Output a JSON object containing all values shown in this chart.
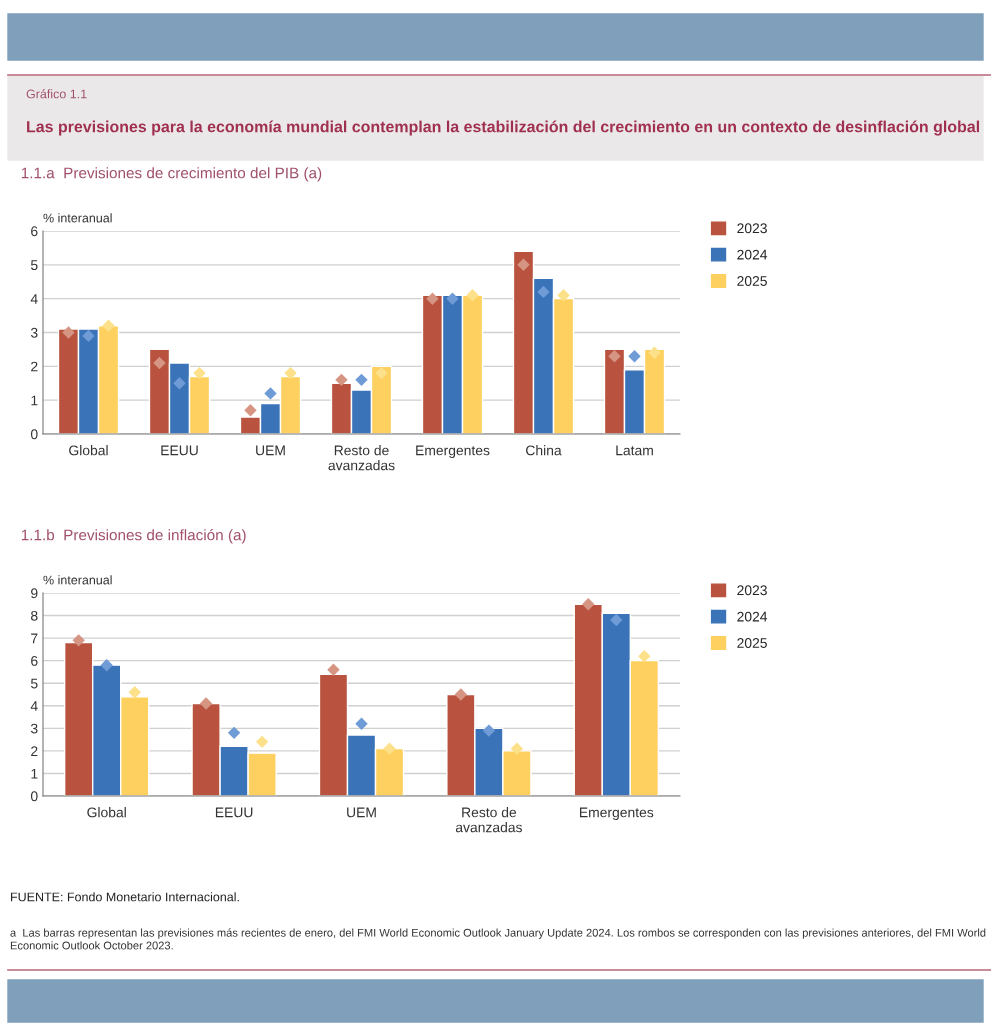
{
  "chart_data": [
    {
      "type": "bar",
      "title": "1.1.a  Previsiones de crecimiento del PIB (a)",
      "ylabel": "% interanual",
      "annotations": [
        "Gráfico 1.1",
        "Las previsiones para la economía mundial contemplan la estabilización del crecimiento en un contexto de desinflación global"
      ],
      "categories": [
        "Global",
        "EEUU",
        "UEM",
        "Resto de\navanzadas",
        "Emergentes",
        "China",
        "Latam"
      ],
      "series": [
        {
          "name": "2023",
          "color": "#b9533f",
          "values": [
            3.1,
            2.5,
            0.5,
            1.5,
            4.1,
            5.4,
            2.5
          ]
        },
        {
          "name": "2024",
          "color": "#3a73b8",
          "values": [
            3.1,
            2.1,
            0.9,
            1.3,
            4.1,
            4.6,
            1.9
          ]
        },
        {
          "name": "2025",
          "color": "#fdd05f",
          "values": [
            3.2,
            1.7,
            1.7,
            2.0,
            4.1,
            4.0,
            2.5
          ]
        },
        {
          "type": "scatter",
          "marker": "diamond",
          "color": "#d69583",
          "x": [
            "Global",
            "EEUU",
            "UEM",
            "Resto de\navanzadas",
            "Emergentes",
            "China",
            "Latam"
          ],
          "values": [
            3.0,
            2.1,
            0.7,
            1.6,
            4.0,
            5.0,
            2.3
          ]
        },
        {
          "type": "scatter",
          "marker": "diamond",
          "color": "#6f9bd6",
          "x": [
            "Global",
            "EEUU",
            "UEM",
            "Resto de\navanzadas",
            "Emergentes",
            "China",
            "Latam"
          ],
          "values": [
            2.9,
            1.5,
            1.2,
            1.6,
            4.0,
            4.2,
            2.3
          ]
        },
        {
          "type": "scatter",
          "marker": "diamond",
          "color": "#fde08a",
          "x": [
            "Global",
            "EEUU",
            "UEM",
            "Resto de\navanzadas",
            "Emergentes",
            "China",
            "Latam"
          ],
          "values": [
            3.2,
            1.8,
            1.8,
            1.8,
            4.1,
            4.1,
            2.4
          ]
        }
      ],
      "ylim": [
        0,
        6
      ],
      "yticks": [
        0,
        1,
        2,
        3,
        4,
        5,
        6
      ],
      "grid": "y",
      "legend": "right"
    },
    {
      "type": "bar",
      "title": "1.1.b  Previsiones de inflación (a)",
      "ylabel": "% interanual",
      "annotations": [
        "FUENTE: Fondo Monetario Internacional.",
        "a  Las barras representan las previsiones más recientes de enero, del FMI World Economic Outlook January Update 2024. Los rombos se corresponden con las previsiones anteriores, del FMI World Economic Outlook October 2023."
      ],
      "categories": [
        "Global",
        "EEUU",
        "UEM",
        "Resto de\navanzadas",
        "Emergentes"
      ],
      "series": [
        {
          "name": "2023",
          "color": "#b9533f",
          "values": [
            6.8,
            4.1,
            5.4,
            4.5,
            8.5
          ]
        },
        {
          "name": "2024",
          "color": "#3a73b8",
          "values": [
            5.8,
            2.2,
            2.7,
            3.0,
            8.1
          ]
        },
        {
          "name": "2025",
          "color": "#fdd05f",
          "values": [
            4.4,
            1.9,
            2.1,
            2.0,
            6.0
          ]
        },
        {
          "type": "scatter",
          "marker": "diamond",
          "color": "#d69583",
          "x": [
            "Global",
            "EEUU",
            "UEM",
            "Resto de\navanzadas",
            "Emergentes"
          ],
          "values": [
            6.9,
            4.1,
            5.6,
            4.5,
            8.5
          ]
        },
        {
          "type": "scatter",
          "marker": "diamond",
          "color": "#6f9bd6",
          "x": [
            "Global",
            "EEUU",
            "UEM",
            "Resto de\navanzadas",
            "Emergentes"
          ],
          "values": [
            5.8,
            2.8,
            3.2,
            2.9,
            7.8
          ]
        },
        {
          "type": "scatter",
          "marker": "diamond",
          "color": "#fde08a",
          "x": [
            "Global",
            "EEUU",
            "UEM",
            "Resto de\navanzadas",
            "Emergentes"
          ],
          "values": [
            4.6,
            2.4,
            2.1,
            2.1,
            6.2
          ]
        }
      ],
      "ylim": [
        0,
        9
      ],
      "yticks": [
        0,
        1,
        2,
        3,
        4,
        5,
        6,
        7,
        8,
        9
      ],
      "grid": "y",
      "legend": "right"
    }
  ]
}
